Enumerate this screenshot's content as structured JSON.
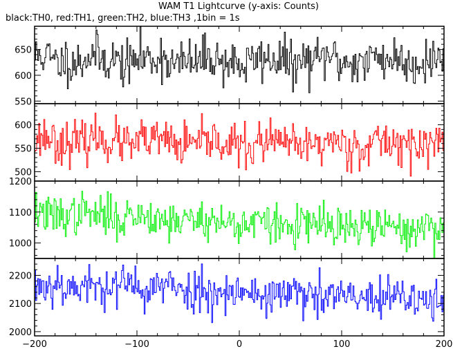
{
  "chart_data": {
    "type": "line",
    "title": "WAM T1 Lightcurve (y-axis: Counts)",
    "subtitle": "black:TH0, red:TH1, green:TH2, blue:TH3 ,1bin = 1s",
    "xlabel": "",
    "ylabel": "",
    "grid": false,
    "xlim": [
      -200,
      200
    ],
    "x_ticks": [
      -200,
      -100,
      0,
      100,
      200
    ],
    "panels": [
      {
        "name": "TH0",
        "color": "#000000",
        "ylim": [
          545,
          695
        ],
        "y_ticks": [
          550,
          600,
          650
        ],
        "mean": 630,
        "noise_sd": 22,
        "seed": 11,
        "trend": [
          [
            -200,
            632
          ],
          [
            0,
            627
          ],
          [
            200,
            630
          ]
        ]
      },
      {
        "name": "TH1",
        "color": "#ff0000",
        "ylim": [
          480,
          645
        ],
        "y_ticks": [
          500,
          550,
          600
        ],
        "mean": 560,
        "noise_sd": 22,
        "seed": 23,
        "trend": [
          [
            -200,
            568
          ],
          [
            0,
            558
          ],
          [
            200,
            560
          ]
        ]
      },
      {
        "name": "TH2",
        "color": "#00ee00",
        "ylim": [
          950,
          1200
        ],
        "y_ticks": [
          1000,
          1100,
          1200
        ],
        "mean": 1060,
        "noise_sd": 32,
        "seed": 37,
        "trend": [
          [
            -200,
            1095
          ],
          [
            -100,
            1085
          ],
          [
            0,
            1065
          ],
          [
            100,
            1050
          ],
          [
            200,
            1045
          ]
        ]
      },
      {
        "name": "TH3",
        "color": "#0000ff",
        "ylim": [
          1985,
          2260
        ],
        "y_ticks": [
          2000,
          2100,
          2200
        ],
        "mean": 2140,
        "noise_sd": 38,
        "seed": 53,
        "trend": [
          [
            -200,
            2165
          ],
          [
            -100,
            2160
          ],
          [
            0,
            2140
          ],
          [
            100,
            2120
          ],
          [
            200,
            2110
          ]
        ]
      }
    ]
  }
}
